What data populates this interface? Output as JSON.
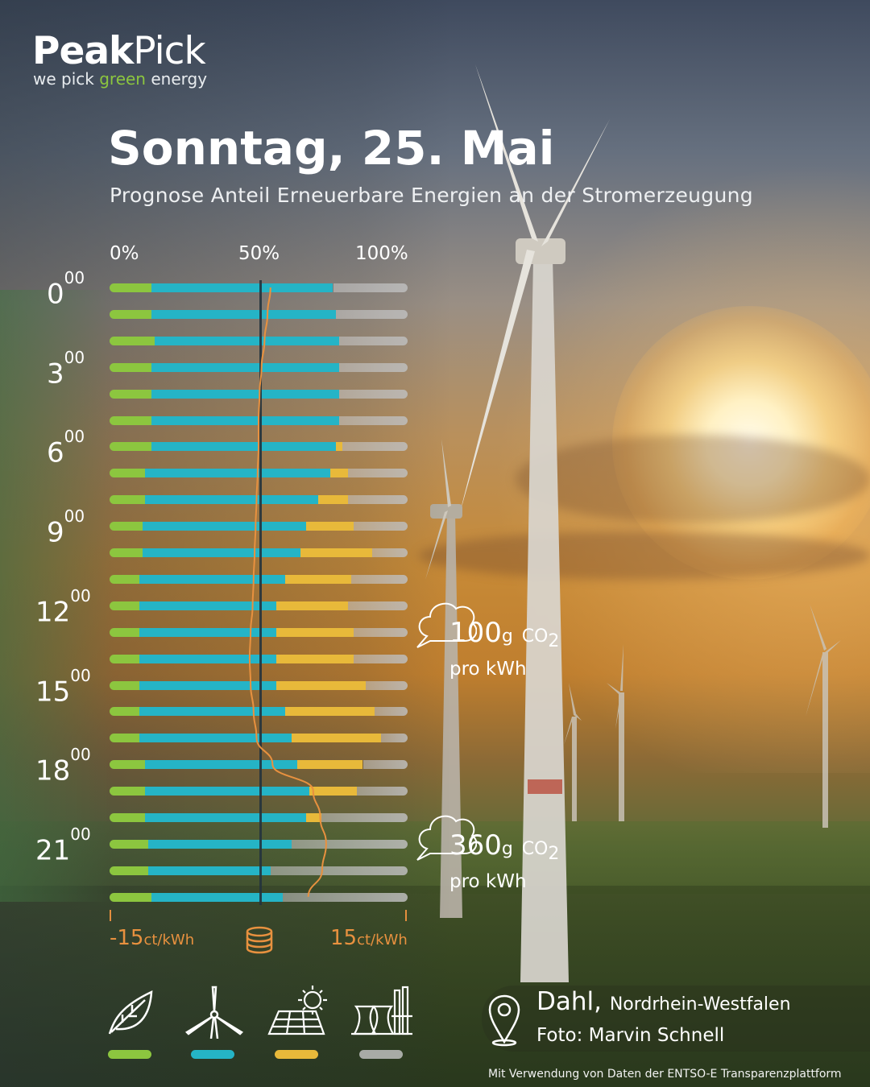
{
  "brand": {
    "name_a": "Peak",
    "name_b": "Pick",
    "tag_a": "we pick ",
    "tag_b": "green",
    "tag_c": " energy"
  },
  "header": {
    "title": "Sonntag, 25. Mai",
    "subtitle": "Prognose Anteil Erneuerbare Energien an der Stromerzeugung"
  },
  "colors": {
    "biomass": "#8cc63f",
    "wind": "#25b4c6",
    "solar": "#e8b93a",
    "conventional": "#b7b7b7",
    "price": "#e8913f"
  },
  "chart_data": {
    "type": "bar",
    "stacked": true,
    "orientation": "horizontal",
    "axis_ticks": [
      "0%",
      "50%",
      "100%"
    ],
    "xlim": [
      0,
      100
    ],
    "hour_labels": [
      {
        "hour": 0,
        "main": "0",
        "sup": "00"
      },
      {
        "hour": 3,
        "main": "3",
        "sup": "00"
      },
      {
        "hour": 6,
        "main": "6",
        "sup": "00"
      },
      {
        "hour": 9,
        "main": "9",
        "sup": "00"
      },
      {
        "hour": 12,
        "main": "12",
        "sup": "00"
      },
      {
        "hour": 15,
        "main": "15",
        "sup": "00"
      },
      {
        "hour": 18,
        "main": "18",
        "sup": "00"
      },
      {
        "hour": 21,
        "main": "21",
        "sup": "00"
      }
    ],
    "categories": [
      0,
      1,
      2,
      3,
      4,
      5,
      6,
      7,
      8,
      9,
      10,
      11,
      12,
      13,
      14,
      15,
      16,
      17,
      18,
      19,
      20,
      21,
      22,
      23
    ],
    "series": [
      {
        "key": "biomass",
        "values": [
          14,
          14,
          15,
          14,
          14,
          14,
          14,
          12,
          12,
          11,
          11,
          10,
          10,
          10,
          10,
          10,
          10,
          10,
          12,
          12,
          12,
          13,
          13,
          14
        ]
      },
      {
        "key": "wind",
        "values": [
          61,
          62,
          62,
          63,
          63,
          63,
          62,
          62,
          58,
          55,
          53,
          49,
          46,
          46,
          46,
          46,
          49,
          51,
          51,
          55,
          54,
          48,
          41,
          44
        ]
      },
      {
        "key": "solar",
        "values": [
          0,
          0,
          0,
          0,
          0,
          0,
          2,
          6,
          10,
          16,
          24,
          22,
          24,
          26,
          26,
          30,
          30,
          30,
          22,
          16,
          5,
          0,
          0,
          0
        ]
      },
      {
        "key": "conventional",
        "values": [
          25,
          24,
          23,
          23,
          23,
          23,
          22,
          20,
          20,
          18,
          12,
          19,
          20,
          18,
          18,
          14,
          11,
          9,
          15,
          17,
          29,
          39,
          46,
          42
        ]
      }
    ],
    "price_line": [
      1.2,
      0.9,
      0.6,
      0.3,
      0.1,
      0,
      0,
      -0.1,
      -0.2,
      -0.3,
      -0.4,
      -0.5,
      -0.6,
      -0.8,
      -0.9,
      -0.8,
      -0.5,
      -0.2,
      1.4,
      5.5,
      6.2,
      6.8,
      6.4,
      5.0
    ],
    "price_axis": {
      "min_num": "-15",
      "max_num": "15",
      "unit": "ct/kWh",
      "range": [
        -15,
        15
      ]
    },
    "co2_callouts": [
      {
        "value": "100",
        "unit": "g",
        "per": "pro kWh"
      },
      {
        "value": "360",
        "unit": "g",
        "per": "pro kWh"
      }
    ]
  },
  "location": {
    "city": "Dahl, ",
    "region": "Nordrhein-Westfalen",
    "photo": "Foto: Marvin Schnell"
  },
  "footer": {
    "credit": "Mit Verwendung von Daten der ENTSO-E Transparenzplattform"
  }
}
